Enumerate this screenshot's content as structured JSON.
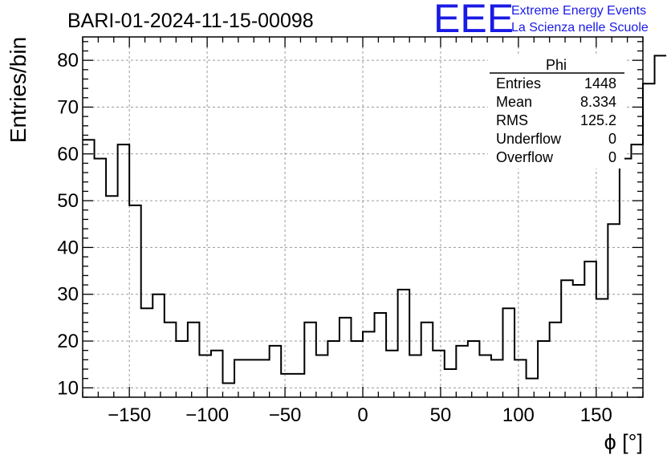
{
  "chart_data": {
    "type": "bar",
    "title": "BARI-01-2024-11-15-00098",
    "xlabel": "ϕ [°]",
    "ylabel": "Entries/bin",
    "xlim": [
      -180,
      180
    ],
    "ylim": [
      8,
      85
    ],
    "grid": true,
    "bin_width": 7.5,
    "x_bin_edges_start": -180,
    "x_ticks": [
      "−150",
      "−100",
      "−50",
      "0",
      "50",
      "100",
      "150"
    ],
    "x_tick_values": [
      -150,
      -100,
      -50,
      0,
      50,
      100,
      150
    ],
    "y_ticks": [
      "10",
      "20",
      "30",
      "40",
      "50",
      "60",
      "70",
      "80"
    ],
    "y_tick_values": [
      10,
      20,
      30,
      40,
      50,
      60,
      70,
      80
    ],
    "values": [
      63,
      59,
      51,
      62,
      49,
      27,
      30,
      24,
      20,
      24,
      17,
      18,
      11,
      16,
      16,
      16,
      19,
      13,
      13,
      24,
      17,
      20,
      25,
      20,
      22,
      26,
      18,
      31,
      17,
      24,
      18,
      14,
      19,
      20,
      17,
      16,
      27,
      16,
      12,
      20,
      24,
      33,
      32,
      37,
      29,
      45,
      59,
      62,
      75,
      81
    ],
    "stats": {
      "name": "Phi",
      "rows": [
        {
          "label": "Entries",
          "value": "1448"
        },
        {
          "label": "Mean",
          "value": "8.334"
        },
        {
          "label": "RMS",
          "value": "125.2"
        },
        {
          "label": "Underflow",
          "value": "0"
        },
        {
          "label": "Overflow",
          "value": "0"
        }
      ]
    }
  },
  "logo": {
    "mark": "EEE",
    "line1": "Extreme Energy Events",
    "line2": "La Scienza nelle Scuole",
    "color": "#1a1ae6"
  }
}
